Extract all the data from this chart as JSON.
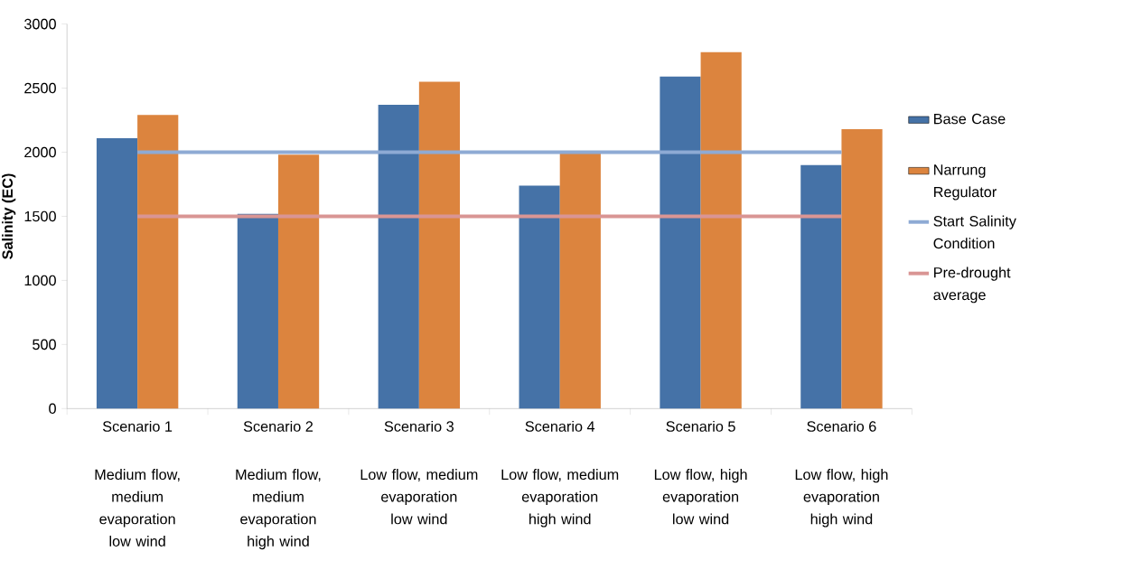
{
  "chart_data": {
    "type": "bar",
    "ylabel": "Salinity (EC)",
    "categories": [
      "Scenario 1",
      "Scenario 2",
      "Scenario 3",
      "Scenario 4",
      "Scenario 5",
      "Scenario 6"
    ],
    "series": [
      {
        "name": "Base Case",
        "color": "#4572a7",
        "values": [
          2110,
          1520,
          2370,
          1740,
          2590,
          1900
        ]
      },
      {
        "name": "Narrung Regulator",
        "color": "#dc843e",
        "values": [
          2290,
          1980,
          2550,
          1990,
          2780,
          2180
        ]
      },
      {
        "name": "Start Salinity Condition",
        "type": "line",
        "color": "#8eaad4",
        "values": [
          2000,
          2000,
          2000,
          2000,
          2000,
          2000
        ]
      },
      {
        "name": "Pre-drought average",
        "type": "line",
        "color": "#d99594",
        "values": [
          1500,
          1500,
          1500,
          1500,
          1500,
          1500
        ]
      }
    ],
    "ylim": [
      0,
      3000
    ],
    "yticks": [
      0,
      500,
      1000,
      1500,
      2000,
      2500,
      3000
    ],
    "legend": "right",
    "marker": "none",
    "annotations": [
      "Medium flow, medium evaporation low wind",
      "Medium flow, medium evaporation high wind",
      "Low flow, medium evaporation low wind",
      "Low flow, medium evaporation high wind",
      "Low flow, high evaporation low wind",
      "Low flow, high evaporation high wind"
    ]
  }
}
